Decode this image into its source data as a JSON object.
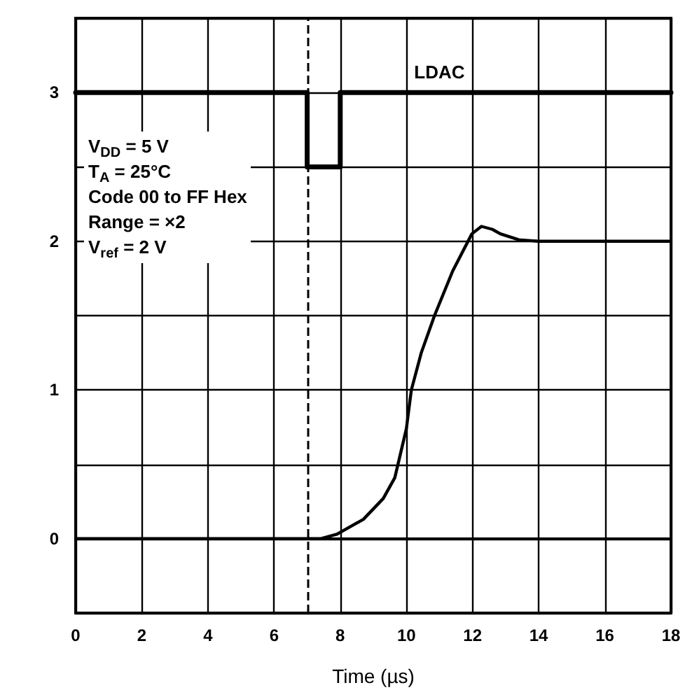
{
  "chart_data": {
    "type": "line",
    "xlabel": "Time (µs)",
    "xlim": [
      0,
      18
    ],
    "xticks": [
      0,
      2,
      4,
      6,
      8,
      10,
      12,
      14,
      16,
      18
    ],
    "ylim": [
      -0.5,
      3.5
    ],
    "yticks": [
      {
        "value": -0.5,
        "label": null
      },
      0,
      {
        "value": 0.5,
        "label": null
      },
      1,
      {
        "value": 1.5,
        "label": null
      },
      2,
      {
        "value": 2.5,
        "label": null
      },
      3,
      {
        "value": 3.5,
        "label": null
      }
    ],
    "grid": true,
    "legend": false,
    "marker": "none",
    "line_style": "solid",
    "series": [
      {
        "name": "LDAC",
        "color": "#000000",
        "x": [
          0,
          7,
          7,
          8,
          8,
          18
        ],
        "values": [
          3,
          3,
          2.5,
          2.5,
          3,
          3
        ]
      },
      {
        "color": "#000000",
        "x": [
          0,
          7.4,
          7.9,
          8.7,
          9.3,
          9.65,
          10.0,
          10.15,
          10.45,
          10.85,
          11.4,
          11.98,
          12.27,
          12.6,
          12.84,
          13.4,
          14,
          18
        ],
        "values": [
          0,
          0,
          0.03,
          0.13,
          0.27,
          0.41,
          0.74,
          1.0,
          1.25,
          1.5,
          1.8,
          2.05,
          2.1,
          2.08,
          2.05,
          2.01,
          2.0,
          2.0
        ]
      }
    ],
    "ref_lines": [
      {
        "axis": "x",
        "value": 7,
        "color": "#000000",
        "line_style": "dashed"
      }
    ],
    "annotations": [
      "V$_{DD}$ = 5 V",
      "T$_{A}$ = 25°C",
      "Code 00 to FF Hex",
      "Range = ×2",
      "V$_{ref}$ = 2 V"
    ]
  }
}
